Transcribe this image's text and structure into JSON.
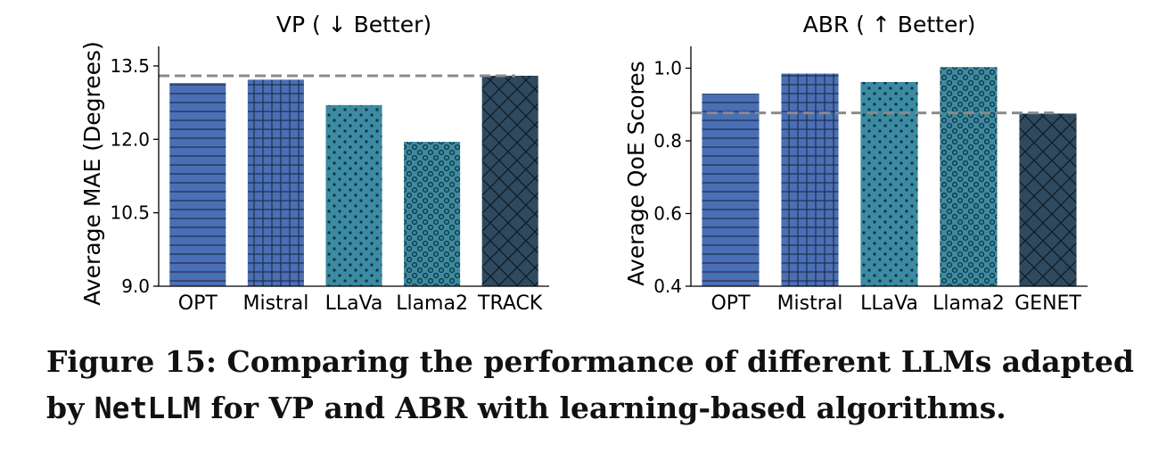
{
  "chart_data": [
    {
      "type": "bar",
      "title": "VP ( ↓ Better)",
      "ylabel": "Average MAE (Degrees)",
      "xlabel": "",
      "categories": [
        "OPT",
        "Mistral",
        "LLaVa",
        "Llama2",
        "TRACK"
      ],
      "values": [
        13.15,
        13.22,
        12.7,
        11.95,
        13.3
      ],
      "ylim": [
        9.0,
        13.9
      ],
      "yticks": [
        "9.0",
        "10.5",
        "12.0",
        "13.5"
      ],
      "ytick_values": [
        9.0,
        10.5,
        12.0,
        13.5
      ],
      "baseline": 13.3,
      "baseline_style": "dashed gray",
      "patterns": [
        "hlines",
        "grid",
        "dots",
        "circles",
        "crosshatch"
      ],
      "colors": [
        "#4a6fb5",
        "#4a6fb5",
        "#3a8ba3",
        "#3a8ba3",
        "#2f4a5f"
      ]
    },
    {
      "type": "bar",
      "title": "ABR ( ↑ Better)",
      "ylabel": "Average QoE Scores",
      "xlabel": "",
      "categories": [
        "OPT",
        "Mistral",
        "LLaVa",
        "Llama2",
        "GENET"
      ],
      "values": [
        0.93,
        0.985,
        0.962,
        1.003,
        0.875
      ],
      "ylim": [
        0.4,
        1.06
      ],
      "yticks": [
        "0.4",
        "0.6",
        "0.8",
        "1.0"
      ],
      "ytick_values": [
        0.4,
        0.6,
        0.8,
        1.0
      ],
      "baseline": 0.877,
      "baseline_style": "dashed gray",
      "patterns": [
        "hlines",
        "grid",
        "dots",
        "circles",
        "crosshatch"
      ],
      "colors": [
        "#4a6fb5",
        "#4a6fb5",
        "#3a8ba3",
        "#3a8ba3",
        "#2f4a5f"
      ]
    }
  ],
  "caption": {
    "prefix": "Figure 15: Comparing the performance of different LLMs adapted",
    "line2_start": "by ",
    "code": "NetLLM",
    "line2_end": " for VP and ABR with learning-based algorithms."
  }
}
